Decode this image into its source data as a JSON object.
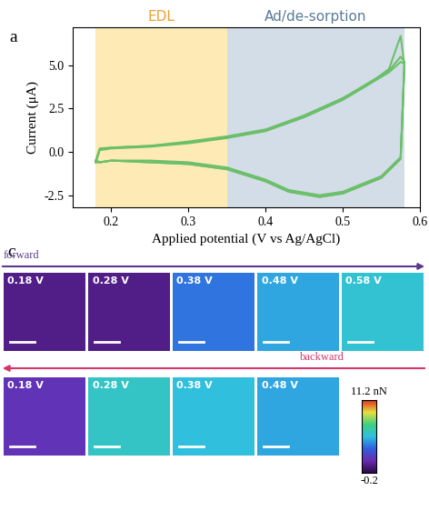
{
  "chart_data": {
    "type": "line",
    "panel_label": "a",
    "x_label": "Applied potential (V vs Ag/AgCl)",
    "y_label": "Current (μA)",
    "xlim": [
      0.15,
      0.6
    ],
    "xticks": [
      0.2,
      0.3,
      0.4,
      0.5,
      0.6
    ],
    "ylim": [
      -3.2,
      7.2
    ],
    "yticks": [
      {
        "value": -2.5,
        "label": "-2.5"
      },
      {
        "value": 0.0,
        "label": "0.0"
      },
      {
        "value": 2.5,
        "label": "2.5"
      },
      {
        "value": 5.0,
        "label": "5.0"
      }
    ],
    "grid": false,
    "regions": [
      {
        "label": "EDL",
        "start": 0.18,
        "end": 0.35,
        "color": "#fdeab4"
      },
      {
        "label": "Ad/de-sorption",
        "start": 0.35,
        "end": 0.58,
        "color": "#d3dde8"
      }
    ],
    "x": [
      0.18,
      0.185,
      0.2,
      0.25,
      0.3,
      0.35,
      0.4,
      0.45,
      0.5,
      0.53,
      0.56,
      0.575,
      0.58,
      0.575,
      0.55,
      0.5,
      0.47,
      0.43,
      0.4,
      0.35,
      0.3,
      0.25,
      0.2,
      0.185,
      0.18
    ],
    "series": [
      {
        "color": "#6cbf6a",
        "values": [
          -0.6,
          0.1,
          0.2,
          0.3,
          0.5,
          0.8,
          1.2,
          2.0,
          3.0,
          3.8,
          4.8,
          6.7,
          5.0,
          -0.3,
          -1.4,
          -2.3,
          -2.5,
          -2.2,
          -1.6,
          -0.9,
          -0.6,
          -0.5,
          -0.5,
          -0.6,
          -0.6
        ]
      },
      {
        "color": "#6cbf6a",
        "values": [
          -0.5,
          0.2,
          0.25,
          0.35,
          0.55,
          0.85,
          1.25,
          2.1,
          3.1,
          3.9,
          4.7,
          5.5,
          5.2,
          -0.4,
          -1.5,
          -2.4,
          -2.6,
          -2.3,
          -1.7,
          -1.0,
          -0.7,
          -0.6,
          -0.5,
          -0.6,
          -0.5
        ]
      },
      {
        "color": "#6cbf6a",
        "values": [
          -0.5,
          0.15,
          0.25,
          0.35,
          0.6,
          0.9,
          1.3,
          2.1,
          3.1,
          3.8,
          4.6,
          5.2,
          5.1,
          -0.4,
          -1.5,
          -2.4,
          -2.6,
          -2.3,
          -1.7,
          -1.0,
          -0.7,
          -0.6,
          -0.5,
          -0.6,
          -0.5
        ]
      }
    ]
  },
  "force_maps": {
    "panel_label": "c",
    "forward": {
      "label": "forward",
      "maps": [
        {
          "label": "0.18 V",
          "value": 1.0
        },
        {
          "label": "0.28 V",
          "value": 1.0
        },
        {
          "label": "0.38 V",
          "value": 4.0
        },
        {
          "label": "0.48 V",
          "value": 5.0
        },
        {
          "label": "0.58 V",
          "value": 5.8
        }
      ]
    },
    "backward": {
      "label": "backward",
      "maps": [
        {
          "label": "0.18 V",
          "value": 2.0
        },
        {
          "label": "0.28 V",
          "value": 6.0
        },
        {
          "label": "0.38 V",
          "value": 5.5
        },
        {
          "label": "0.48 V",
          "value": 5.0
        }
      ]
    },
    "colorbar": {
      "range": [
        -0.2,
        11.2
      ],
      "ticks": [
        {
          "value": 11.2,
          "label": "11.2 nN"
        },
        {
          "value": -0.2,
          "label": "-0.2"
        }
      ]
    }
  }
}
